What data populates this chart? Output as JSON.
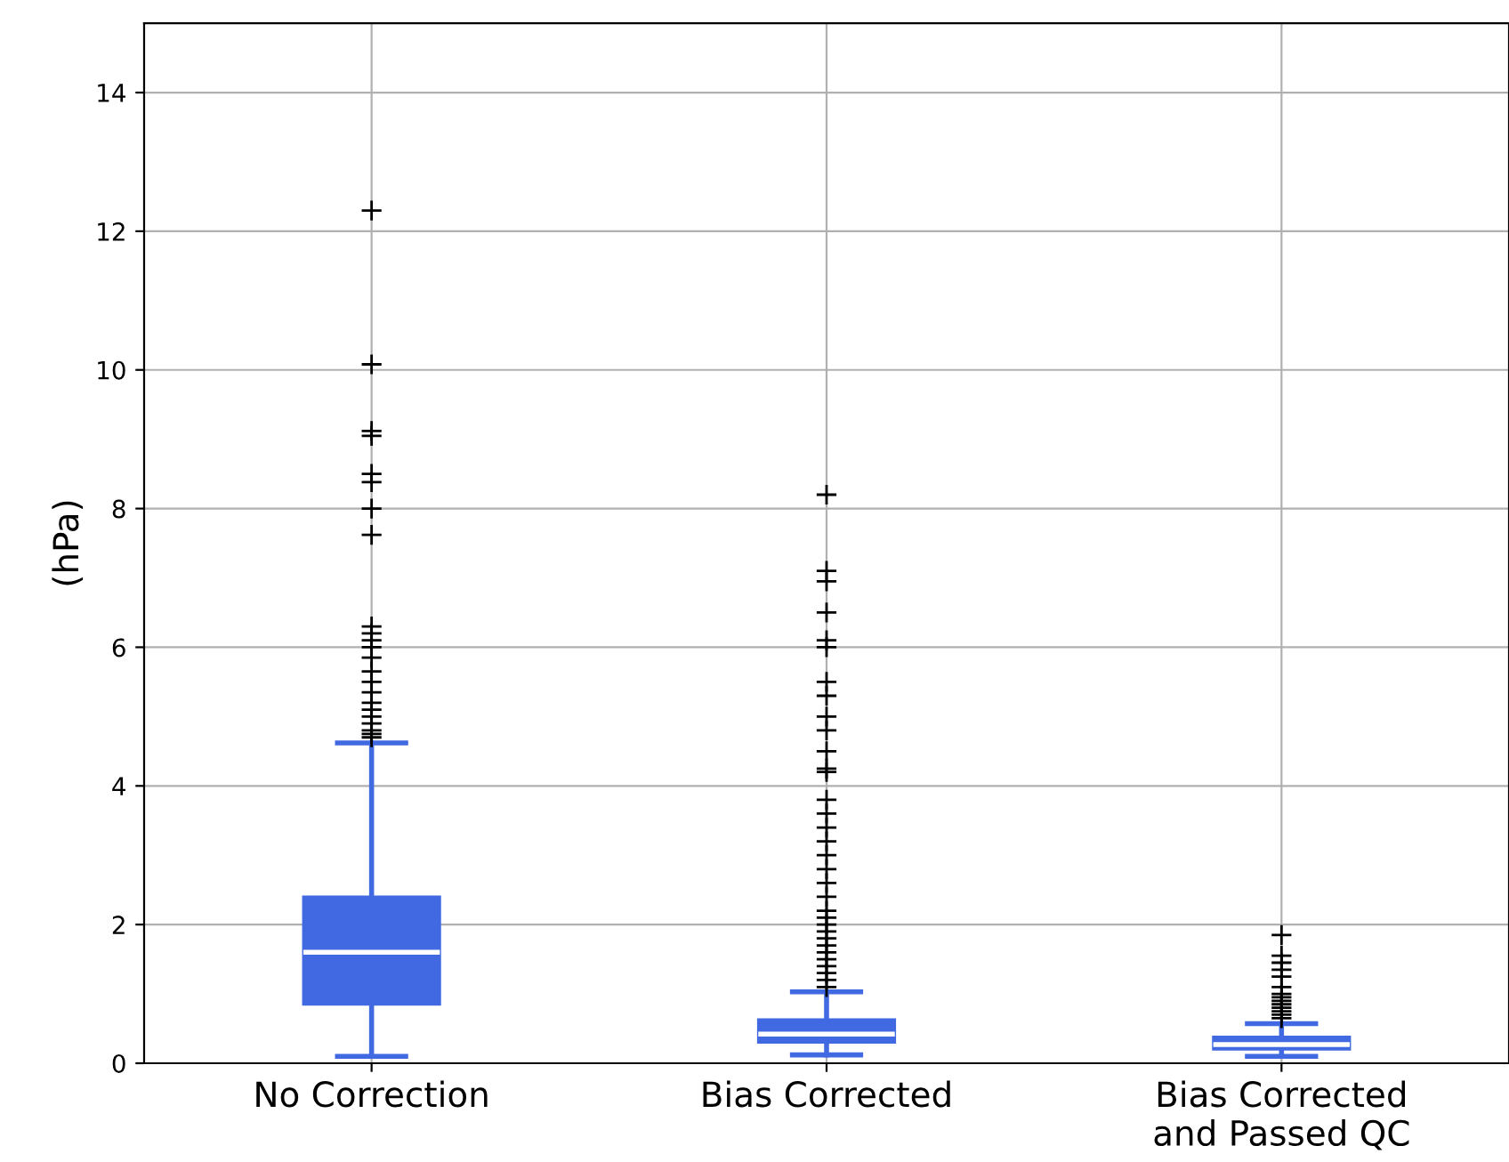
{
  "chart_data": {
    "type": "box",
    "ylabel": "(hPa)",
    "categories": [
      "No Correction",
      "Bias Corrected",
      "Bias Corrected\nand Passed QC"
    ],
    "color": "#4169e1",
    "boxes": [
      {
        "low": 0.1,
        "q1": 0.85,
        "median": 1.6,
        "q3": 2.4,
        "high": 4.62,
        "outliers": [
          12.3,
          10.08,
          9.12,
          9.05,
          8.5,
          8.38,
          8.0,
          7.62,
          6.3,
          6.2,
          6.1,
          6.0,
          5.85,
          5.65,
          5.5,
          5.35,
          5.2,
          5.1,
          5.0,
          4.9,
          4.8,
          4.75,
          4.7
        ]
      },
      {
        "low": 0.12,
        "q1": 0.3,
        "median": 0.42,
        "q3": 0.63,
        "high": 1.03,
        "outliers": [
          8.2,
          7.1,
          6.95,
          6.5,
          6.1,
          6.0,
          5.5,
          5.3,
          5.0,
          4.8,
          4.5,
          4.25,
          4.2,
          3.8,
          3.6,
          3.4,
          3.2,
          3.0,
          2.8,
          2.6,
          2.4,
          2.2,
          2.1,
          2.0,
          1.9,
          1.8,
          1.7,
          1.6,
          1.5,
          1.4,
          1.3,
          1.2,
          1.1
        ]
      },
      {
        "low": 0.1,
        "q1": 0.2,
        "median": 0.27,
        "q3": 0.38,
        "high": 0.57,
        "outliers": [
          1.85,
          1.55,
          1.45,
          1.35,
          1.25,
          1.1,
          1.0,
          0.95,
          0.9,
          0.85,
          0.8,
          0.75,
          0.7,
          0.65
        ]
      }
    ],
    "ylim": [
      0,
      15
    ],
    "yticks": [
      0,
      2,
      4,
      6,
      8,
      10,
      12,
      14
    ],
    "grid": true,
    "marker": "cross"
  }
}
